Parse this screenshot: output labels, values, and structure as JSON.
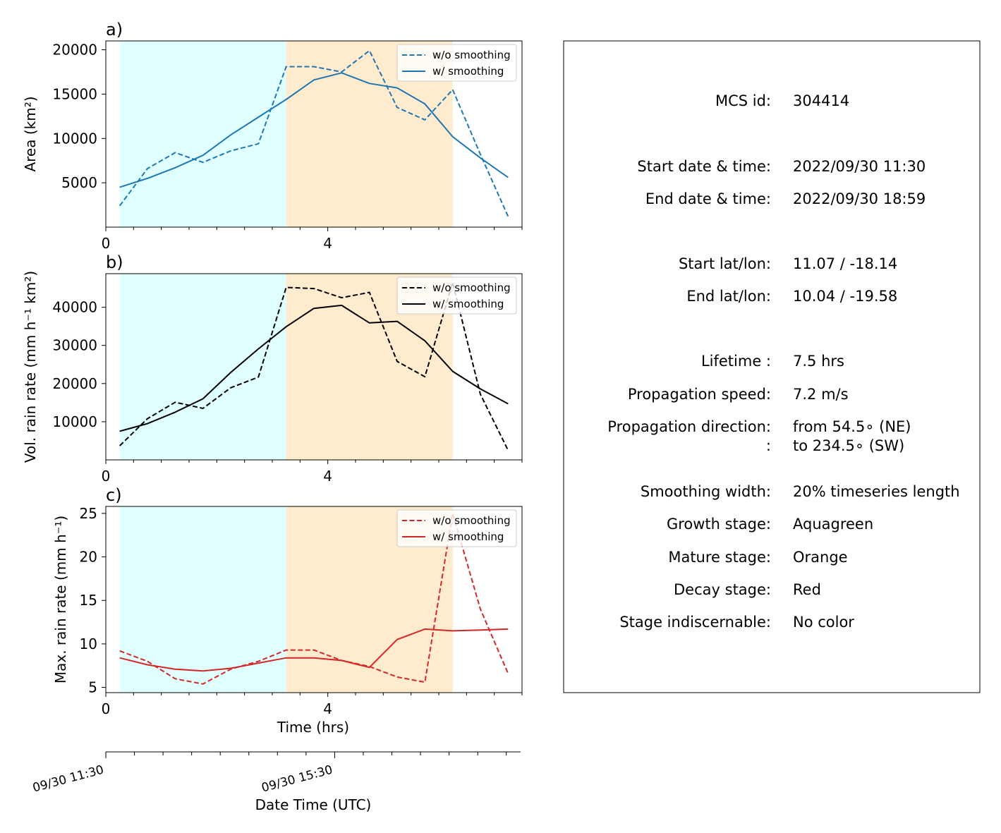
{
  "chart_data": [
    {
      "type": "line",
      "panel_label": "a)",
      "ylabel": "Area  (km²)",
      "xlim": [
        0,
        7.5
      ],
      "ylim": [
        0,
        21000
      ],
      "yticks": [
        5000,
        10000,
        15000,
        20000
      ],
      "xticks": [
        0,
        4
      ],
      "xticks_minor": [
        0.5,
        1,
        1.5,
        2,
        2.5,
        3,
        3.5,
        4.5,
        5,
        5.5,
        6,
        6.5,
        7,
        7.5
      ],
      "color": "#1f77b4",
      "series": [
        {
          "name": "w/o smoothing",
          "style": "dashed",
          "x": [
            0.25,
            0.75,
            1.25,
            1.75,
            2.25,
            2.75,
            3.25,
            3.75,
            4.25,
            4.75,
            5.25,
            5.75,
            6.25,
            6.75,
            7.25
          ],
          "y": [
            2400,
            6600,
            8400,
            7300,
            8600,
            9400,
            18100,
            18100,
            17500,
            19900,
            13500,
            12100,
            15500,
            8200,
            1200
          ]
        },
        {
          "name": "w/ smoothing",
          "style": "solid",
          "x": [
            0.25,
            0.75,
            1.25,
            1.75,
            2.25,
            2.75,
            3.25,
            3.75,
            4.25,
            4.75,
            5.25,
            5.75,
            6.25,
            6.75,
            7.25
          ],
          "y": [
            4500,
            5500,
            6700,
            8100,
            10400,
            12400,
            14400,
            16600,
            17400,
            16200,
            15700,
            13900,
            10200,
            7800,
            5600
          ]
        }
      ],
      "shaded": [
        {
          "stage": "growth",
          "x": [
            0.25,
            3.25
          ],
          "color": "#e0ffff"
        },
        {
          "stage": "mature",
          "x": [
            3.25,
            6.25
          ],
          "color": "#ffebcd"
        }
      ]
    },
    {
      "type": "line",
      "panel_label": "b)",
      "ylabel": "Vol. rain rate (mm h⁻¹ km²)",
      "xlim": [
        0,
        7.5
      ],
      "ylim": [
        0,
        48800
      ],
      "yticks": [
        10000,
        20000,
        30000,
        40000
      ],
      "xticks": [
        0,
        4
      ],
      "xticks_minor": [
        0.5,
        1,
        1.5,
        2,
        2.5,
        3,
        3.5,
        4.5,
        5,
        5.5,
        6,
        6.5,
        7,
        7.5
      ],
      "color": "#000000",
      "series": [
        {
          "name": "w/o smoothing",
          "style": "dashed",
          "x": [
            0.25,
            0.75,
            1.25,
            1.75,
            2.25,
            2.75,
            3.25,
            3.75,
            4.25,
            4.75,
            5.25,
            5.75,
            6.25,
            6.75,
            7.25
          ],
          "y": [
            3700,
            10800,
            15100,
            13500,
            18900,
            21700,
            45200,
            44900,
            42500,
            43900,
            25800,
            21800,
            46500,
            17200,
            2500
          ]
        },
        {
          "name": "w/ smoothing",
          "style": "solid",
          "x": [
            0.25,
            0.75,
            1.25,
            1.75,
            2.25,
            2.75,
            3.25,
            3.75,
            4.25,
            4.75,
            5.25,
            5.75,
            6.25,
            6.75,
            7.25
          ],
          "y": [
            7500,
            9500,
            12500,
            16000,
            22900,
            29100,
            34900,
            39700,
            40500,
            35900,
            36300,
            31200,
            23200,
            18600,
            14700
          ]
        }
      ],
      "shaded": [
        {
          "stage": "growth",
          "x": [
            0.25,
            3.25
          ],
          "color": "#e0ffff"
        },
        {
          "stage": "mature",
          "x": [
            3.25,
            6.25
          ],
          "color": "#ffebcd"
        }
      ]
    },
    {
      "type": "line",
      "panel_label": "c)",
      "xlabel": "Time (hrs)",
      "ylabel": "Max. rain rate  (mm h⁻¹)",
      "xlim": [
        0,
        7.5
      ],
      "ylim": [
        4.4,
        25.8
      ],
      "yticks": [
        5,
        10,
        15,
        20,
        25
      ],
      "xticks": [
        0,
        4
      ],
      "xticks_minor": [
        0.5,
        1,
        1.5,
        2,
        2.5,
        3,
        3.5,
        4.5,
        5,
        5.5,
        6,
        6.5,
        7,
        7.5
      ],
      "color": "#d62728",
      "series": [
        {
          "name": "w/o smoothing",
          "style": "dashed",
          "x": [
            0.25,
            0.75,
            1.25,
            1.75,
            2.25,
            2.75,
            3.25,
            3.75,
            4.25,
            4.75,
            5.25,
            5.75,
            6.25,
            6.75,
            7.25
          ],
          "y": [
            9.2,
            8.0,
            6.0,
            5.4,
            7.1,
            8.0,
            9.3,
            9.3,
            8.1,
            7.4,
            6.2,
            5.6,
            25.0,
            14.0,
            6.6
          ]
        },
        {
          "name": "w/ smoothing",
          "style": "solid",
          "x": [
            0.25,
            0.75,
            1.25,
            1.75,
            2.25,
            2.75,
            3.25,
            3.75,
            4.25,
            4.75,
            5.25,
            5.75,
            6.25,
            6.75,
            7.25
          ],
          "y": [
            8.4,
            7.6,
            7.1,
            6.9,
            7.2,
            7.8,
            8.4,
            8.4,
            8.1,
            7.3,
            10.5,
            11.7,
            11.5,
            11.6,
            11.7
          ]
        }
      ],
      "shaded": [
        {
          "stage": "growth",
          "x": [
            0.25,
            3.25
          ],
          "color": "#e0ffff"
        },
        {
          "stage": "mature",
          "x": [
            3.25,
            6.25
          ],
          "color": "#ffebcd"
        }
      ]
    }
  ],
  "datetime_axis": {
    "label": "Date Time (UTC)",
    "ticks": [
      {
        "label": "09/30 11:30",
        "hours": 0
      },
      {
        "label": "09/30 15:30",
        "hours": 4
      }
    ],
    "minor_hours": [
      0.5,
      1,
      1.5,
      2,
      2.5,
      3,
      3.5,
      4.5,
      5,
      5.5,
      6,
      6.5,
      7
    ]
  },
  "info": {
    "rows": [
      {
        "label": "MCS id:",
        "value": "304414"
      },
      {
        "label": "Start date & time:",
        "value": "2022/09/30 11:30"
      },
      {
        "label": "End date & time:",
        "value": "2022/09/30 18:59"
      },
      {
        "label": "Start lat/lon:",
        "value": "11.07 / -18.14"
      },
      {
        "label": "End lat/lon:",
        "value": "10.04 / -19.58"
      },
      {
        "label": "Lifetime :",
        "value": "7.5 hrs"
      },
      {
        "label": "Propagation speed:",
        "value": "7.2 m/s"
      },
      {
        "label": "Propagation direction:",
        "value": "from  54.5∘ (NE)"
      },
      {
        "label": ":",
        "value": "to   234.5∘ (SW)"
      },
      {
        "label": "Smoothing width:",
        "value": "20% timeseries length"
      },
      {
        "label": "Growth stage:",
        "value": "Aquagreen"
      },
      {
        "label": "Mature stage:",
        "value": "Orange"
      },
      {
        "label": "Decay stage:",
        "value": "Red"
      },
      {
        "label": "Stage indiscernable:",
        "value": "No color"
      }
    ]
  }
}
